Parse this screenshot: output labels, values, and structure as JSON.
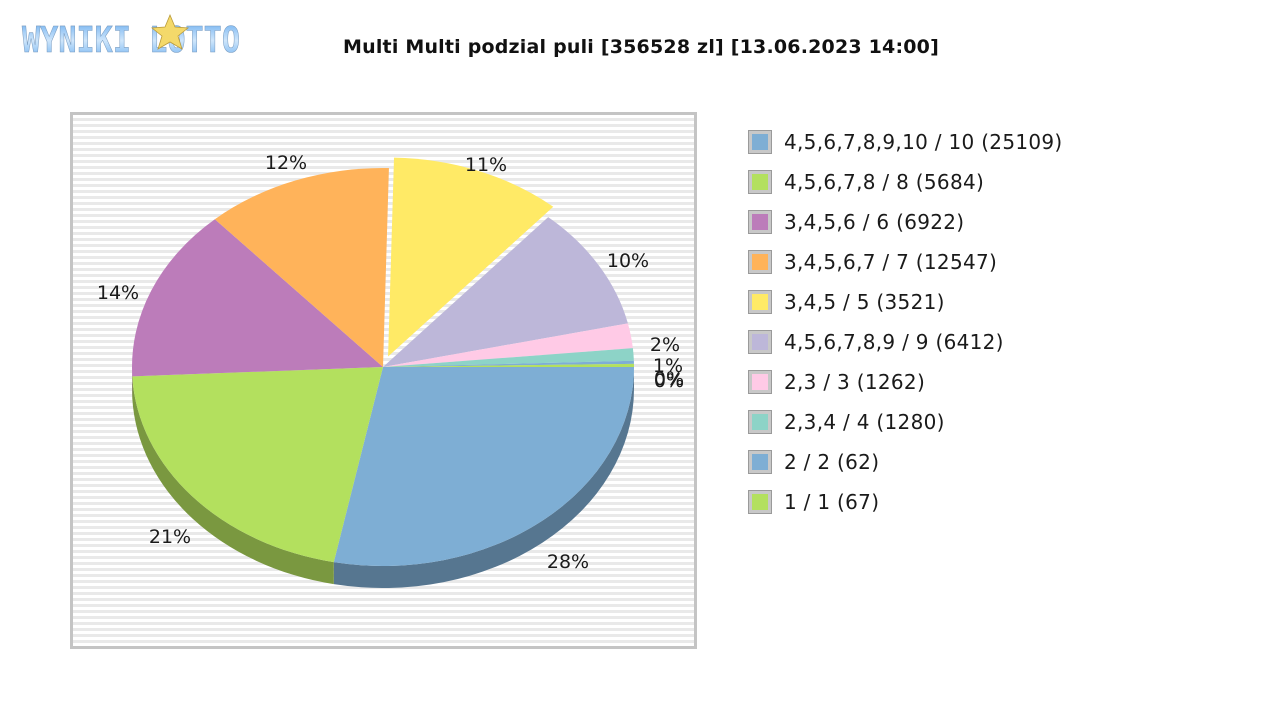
{
  "header": {
    "logo_text": "WYNIKI LOTTO",
    "title": "Multi Multi podzial puli [356528 zl] [13.06.2023 14:00]"
  },
  "colors": {
    "blue": "#7eaed4",
    "green": "#b3e05e",
    "purple": "#bc7cba",
    "orange": "#ffb35a",
    "yellow": "#ffea66",
    "lavender": "#bdb7d9",
    "pink": "#ffcae6",
    "teal": "#8dd3c7"
  },
  "chart_data": {
    "type": "pie",
    "title": "Multi Multi podzial puli [356528 zl] [13.06.2023 14:00]",
    "style": "3d-pie, exploded slice '3,4,5 / 5'",
    "legend_position": "right",
    "categories": [
      "4,5,6,7,8,9,10 / 10 (25109)",
      "4,5,6,7,8 / 8 (5684)",
      "3,4,5,6 / 6 (6922)",
      "3,4,5,6,7 / 7 (12547)",
      "3,4,5 / 5 (3521)",
      "4,5,6,7,8,9 / 9 (6412)",
      "2,3 / 3 (1262)",
      "2,3,4 / 4 (1280)",
      "2 / 2 (62)",
      "1 / 1 (67)"
    ],
    "values_percent": [
      28,
      21,
      14,
      12,
      11,
      10,
      2,
      1,
      0,
      0
    ],
    "value_labels": [
      "28%",
      "21%",
      "14%",
      "12%",
      "11%",
      "10%",
      "2%",
      "1%",
      "0%",
      "0%"
    ],
    "amounts": [
      25109,
      5684,
      6922,
      12547,
      3521,
      6412,
      1262,
      1280,
      62,
      67
    ],
    "slice_colors": [
      "#7eaed4",
      "#b3e05e",
      "#bc7cba",
      "#ffb35a",
      "#ffea66",
      "#bdb7d9",
      "#ffcae6",
      "#8dd3c7",
      "#7eaed4",
      "#b3e05e"
    ]
  },
  "legend": {
    "items": [
      {
        "label": "4,5,6,7,8,9,10 / 10 (25109)",
        "color": "#7eaed4"
      },
      {
        "label": "4,5,6,7,8 / 8 (5684)",
        "color": "#b3e05e"
      },
      {
        "label": "3,4,5,6 / 6 (6922)",
        "color": "#bc7cba"
      },
      {
        "label": "3,4,5,6,7 / 7 (12547)",
        "color": "#ffb35a"
      },
      {
        "label": "3,4,5 / 5 (3521)",
        "color": "#ffea66"
      },
      {
        "label": "4,5,6,7,8,9 / 9 (6412)",
        "color": "#bdb7d9"
      },
      {
        "label": "2,3 / 3 (1262)",
        "color": "#ffcae6"
      },
      {
        "label": "2,3,4 / 4 (1280)",
        "color": "#8dd3c7"
      },
      {
        "label": "2 / 2 (62)",
        "color": "#7eaed4"
      },
      {
        "label": "1 / 1 (67)",
        "color": "#b3e05e"
      }
    ]
  }
}
